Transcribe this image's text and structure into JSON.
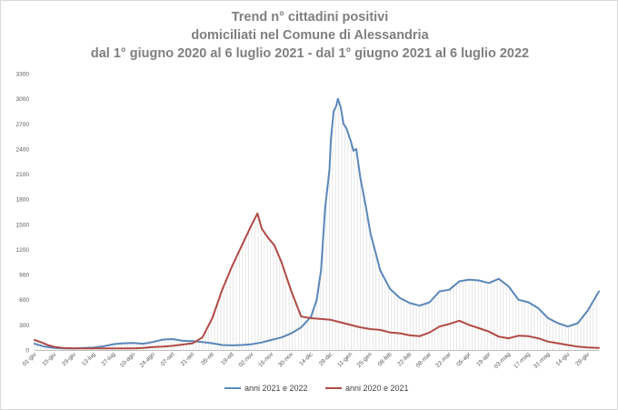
{
  "chart_data": {
    "type": "line",
    "title": [
      "Trend n° cittadini positivi",
      "domiciliati nel Comune di Alessandria",
      "dal 1° giugno 2020 al 6 luglio 2021 - dal 1° giugno 2021 al 6 luglio 2022"
    ],
    "xlabel": "",
    "ylabel": "",
    "ylim": [
      0,
      3300
    ],
    "y_ticks": [
      "0",
      "300",
      "600",
      "900",
      "1200",
      "1500",
      "1800",
      "2100",
      "2400",
      "2700",
      "3000",
      "3300"
    ],
    "x_tick_labels": [
      "01-giu",
      "15-giu",
      "29-giu",
      "13-lug",
      "27-lug",
      "10-ago",
      "24-ago",
      "07-set",
      "21-set",
      "05-ott",
      "19-ott",
      "02-nov",
      "16-nov",
      "30-nov",
      "14-dic",
      "28-dic",
      "11-gen",
      "25-gen",
      "08-feb",
      "22-feb",
      "08-mar",
      "22-mar",
      "05-apr",
      "19-apr",
      "03-mag",
      "17-mag",
      "31-mag",
      "14-giu",
      "28-giu"
    ],
    "x_range": [
      0,
      400
    ],
    "grid": "vertical drop lines",
    "legend": "bottom",
    "series": [
      {
        "name": "anni 2021 e 2022",
        "color": "#5b87b8",
        "x": [
          0,
          7,
          14,
          21,
          28,
          35,
          42,
          49,
          56,
          63,
          70,
          77,
          84,
          91,
          98,
          105,
          112,
          119,
          126,
          133,
          140,
          147,
          154,
          161,
          168,
          175,
          182,
          189,
          196,
          200,
          203,
          206,
          209,
          210,
          212,
          214,
          215,
          217,
          219,
          221,
          224,
          226,
          228,
          231,
          235,
          238,
          245,
          252,
          259,
          266,
          273,
          280,
          287,
          294,
          301,
          308,
          315,
          322,
          329,
          336,
          343,
          350,
          357,
          364,
          371,
          378,
          385,
          392,
          400
        ],
        "values": [
          75,
          40,
          25,
          20,
          20,
          25,
          30,
          45,
          70,
          80,
          85,
          75,
          95,
          125,
          130,
          110,
          105,
          95,
          80,
          60,
          55,
          60,
          70,
          90,
          120,
          150,
          200,
          270,
          400,
          600,
          950,
          1700,
          2150,
          2500,
          2850,
          2920,
          3000,
          2900,
          2700,
          2650,
          2500,
          2380,
          2400,
          2050,
          1700,
          1400,
          950,
          730,
          620,
          560,
          530,
          570,
          700,
          720,
          820,
          840,
          830,
          800,
          850,
          760,
          600,
          570,
          500,
          380,
          320,
          280,
          320,
          470,
          700
        ]
      },
      {
        "name": "anni 2020 e 2021",
        "color": "#b04a46",
        "x": [
          0,
          5,
          10,
          15,
          20,
          28,
          35,
          42,
          49,
          56,
          63,
          70,
          77,
          84,
          91,
          98,
          105,
          112,
          119,
          126,
          133,
          140,
          147,
          154,
          158,
          161,
          165,
          170,
          175,
          182,
          189,
          196,
          203,
          210,
          217,
          224,
          231,
          238,
          245,
          252,
          259,
          266,
          273,
          280,
          287,
          294,
          301,
          308,
          315,
          322,
          329,
          336,
          343,
          350,
          357,
          364,
          371,
          378,
          385,
          392,
          400
        ],
        "values": [
          120,
          90,
          55,
          35,
          25,
          20,
          18,
          18,
          18,
          18,
          18,
          20,
          25,
          35,
          40,
          50,
          65,
          80,
          150,
          380,
          720,
          1000,
          1250,
          1500,
          1630,
          1450,
          1350,
          1250,
          1050,
          700,
          400,
          380,
          370,
          360,
          330,
          300,
          270,
          250,
          240,
          210,
          200,
          175,
          165,
          210,
          280,
          310,
          350,
          300,
          260,
          220,
          160,
          140,
          170,
          165,
          140,
          100,
          80,
          60,
          40,
          30,
          25
        ]
      }
    ]
  }
}
